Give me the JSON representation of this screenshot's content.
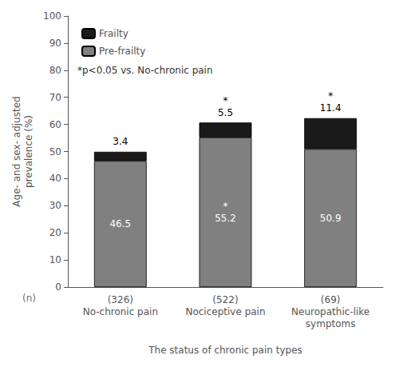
{
  "chart_data": {
    "type": "bar",
    "stacked": true,
    "categories": [
      "No-chronic pain",
      "Nociceptive pain",
      "Neuropathic-like\nsymptoms"
    ],
    "n_labels": [
      "(326)",
      "(522)",
      "(69)"
    ],
    "n_label_heading": "(n)",
    "series": [
      {
        "name": "Pre-frailty",
        "color": "#808080",
        "values": [
          46.5,
          55.2,
          50.9
        ],
        "significant": [
          false,
          true,
          false
        ]
      },
      {
        "name": "Frailty",
        "color": "#1a1a1a",
        "values": [
          3.4,
          5.5,
          11.4
        ],
        "significant": [
          false,
          true,
          true
        ]
      }
    ],
    "significance_label": "*",
    "annotation": "*p<0.05 vs. No-chronic pain",
    "ylabel": "Age- and sex- adjusted\nprevalence (%)",
    "xlabel": "The status of chronic pain types",
    "ylim": [
      0,
      100
    ],
    "yticks": [
      0,
      10,
      20,
      30,
      40,
      50,
      60,
      70,
      80,
      90,
      100
    ],
    "grid": false,
    "legend": "upper left",
    "data_labels": true
  }
}
